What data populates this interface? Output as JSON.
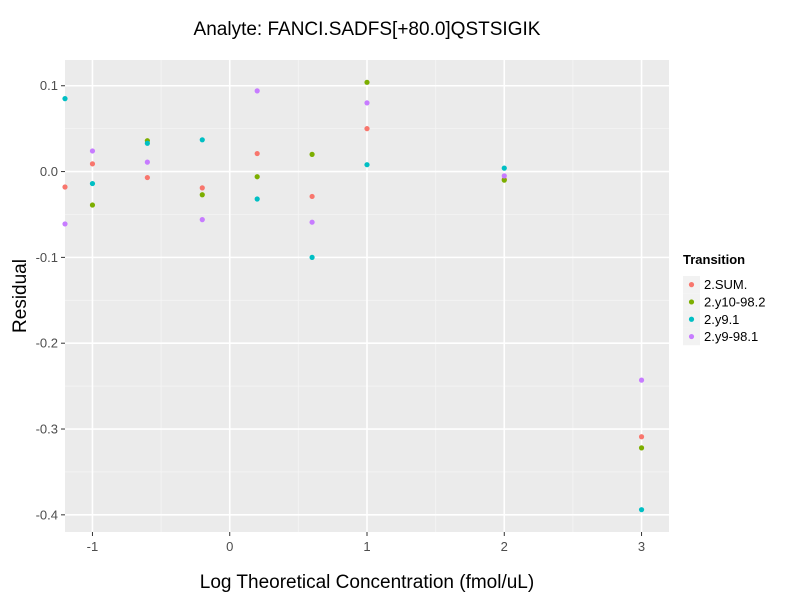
{
  "chart_data": {
    "type": "scatter",
    "title": "Analyte: FANCI.SADFS[+80.0]QSTSIGIK",
    "xlabel": "Log Theoretical Concentration (fmol/uL)",
    "ylabel": "Residual",
    "xlim": [
      -1.2,
      3.2
    ],
    "ylim": [
      -0.42,
      0.13
    ],
    "x_ticks": [
      -1,
      0,
      1,
      2,
      3
    ],
    "x_tick_labels": [
      "-1",
      "0",
      "1",
      "2",
      "3"
    ],
    "y_ticks": [
      0.1,
      0.0,
      -0.1,
      -0.2,
      -0.3,
      -0.4
    ],
    "y_tick_labels": [
      "0.1",
      "0.0",
      "-0.1",
      "-0.2",
      "-0.3",
      "-0.4"
    ],
    "grid": true,
    "legend": {
      "title": "Transition",
      "position": "right"
    },
    "series": [
      {
        "name": "2.SUM.",
        "color": "#F8766D",
        "points": [
          [
            -1.2,
            -0.018
          ],
          [
            -1,
            0.009
          ],
          [
            -0.6,
            -0.007
          ],
          [
            -0.2,
            -0.019
          ],
          [
            0.2,
            0.021
          ],
          [
            0.6,
            -0.029
          ],
          [
            1,
            0.05
          ],
          [
            2,
            -0.009
          ],
          [
            3,
            -0.309
          ]
        ]
      },
      {
        "name": "2.y10-98.2",
        "color": "#7CAE00",
        "points": [
          [
            -1,
            -0.039
          ],
          [
            -0.6,
            0.036
          ],
          [
            -0.2,
            -0.027
          ],
          [
            0.2,
            -0.006
          ],
          [
            0.6,
            0.02
          ],
          [
            1,
            0.104
          ],
          [
            2,
            -0.01
          ],
          [
            3,
            -0.322
          ]
        ]
      },
      {
        "name": "2.y9.1",
        "color": "#00BFC4",
        "points": [
          [
            -1.2,
            0.085
          ],
          [
            -1,
            -0.014
          ],
          [
            -0.6,
            0.033
          ],
          [
            -0.2,
            0.037
          ],
          [
            0.2,
            -0.032
          ],
          [
            0.6,
            -0.1
          ],
          [
            1,
            0.008
          ],
          [
            2,
            0.004
          ],
          [
            3,
            -0.394
          ]
        ]
      },
      {
        "name": "2.y9-98.1",
        "color": "#C77CFF",
        "points": [
          [
            -1.2,
            -0.061
          ],
          [
            -1,
            0.024
          ],
          [
            -0.6,
            0.011
          ],
          [
            -0.2,
            -0.056
          ],
          [
            0.2,
            0.094
          ],
          [
            0.6,
            -0.059
          ],
          [
            1,
            0.08
          ],
          [
            2,
            -0.005
          ],
          [
            3,
            -0.243
          ]
        ]
      }
    ]
  }
}
